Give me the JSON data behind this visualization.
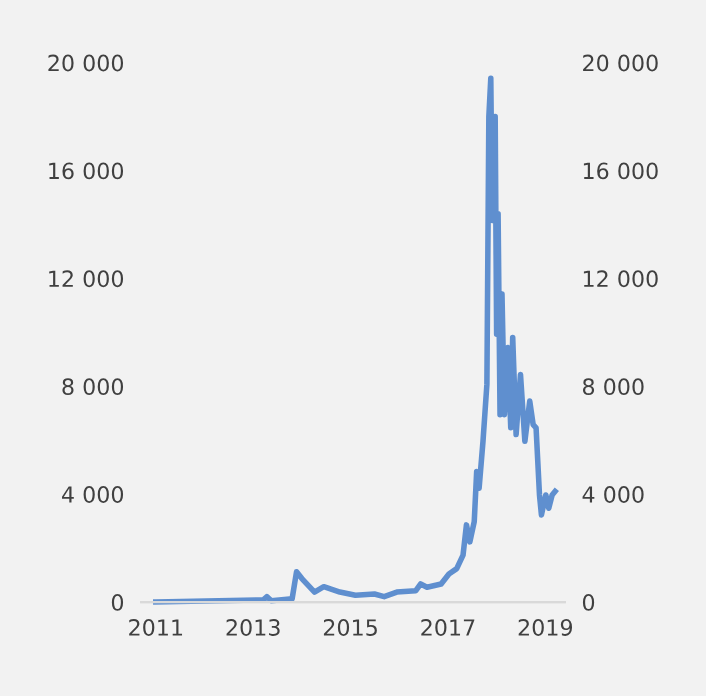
{
  "chart_data": {
    "type": "line",
    "x": [
      2011.0,
      2013.21,
      2013.28,
      2013.37,
      2013.8,
      2013.89,
      2014.0,
      2014.26,
      2014.45,
      2014.78,
      2015.1,
      2015.49,
      2015.69,
      2015.95,
      2016.34,
      2016.44,
      2016.57,
      2016.86,
      2017.02,
      2017.18,
      2017.31,
      2017.38,
      2017.45,
      2017.54,
      2017.59,
      2017.64,
      2017.72,
      2017.8,
      2017.84,
      2017.88,
      2017.91,
      2017.97,
      2018.0,
      2018.03,
      2018.07,
      2018.11,
      2018.16,
      2018.23,
      2018.29,
      2018.33,
      2018.4,
      2018.49,
      2018.58,
      2018.68,
      2018.75,
      2018.81,
      2018.88,
      2018.92,
      2019.01,
      2019.07,
      2019.14,
      2019.2
    ],
    "series": [
      {
        "color": "#5f8fcf",
        "values": [
          0,
          80,
          200,
          50,
          120,
          1120,
          870,
          370,
          570,
          370,
          250,
          300,
          200,
          370,
          420,
          670,
          550,
          670,
          1040,
          1240,
          1740,
          2860,
          2230,
          2980,
          4840,
          4220,
          5960,
          8070,
          18000,
          19420,
          14150,
          18000,
          9930,
          14400,
          6950,
          11420,
          6950,
          9440,
          6460,
          9810,
          6210,
          8440,
          5960,
          7450,
          6580,
          6460,
          3970,
          3230,
          3970,
          3480,
          3970,
          4100
        ]
      }
    ],
    "xlim": [
      2010.7,
      2019.4
    ],
    "xticks": [
      2011,
      2013,
      2015,
      2017,
      2019
    ],
    "ylim": [
      0,
      20000
    ],
    "yticks": [
      0,
      {
        "value": 4000,
        "label": "4 000"
      },
      {
        "value": 8000,
        "label": "8 000"
      },
      {
        "value": 12000,
        "label": "12 000"
      },
      {
        "value": 16000,
        "label": "16 000"
      },
      {
        "value": 20000,
        "label": "20 000"
      }
    ],
    "y2lim": [
      0,
      20000
    ],
    "y2ticks": [
      0,
      {
        "value": 4000,
        "label": "4 000"
      },
      {
        "value": 8000,
        "label": "8 000"
      },
      {
        "value": 12000,
        "label": "12 000"
      },
      {
        "value": 16000,
        "label": "16 000"
      },
      {
        "value": 20000,
        "label": "20 000"
      }
    ],
    "grid": false,
    "legend": false,
    "marker": "none",
    "line_style": "solid"
  }
}
